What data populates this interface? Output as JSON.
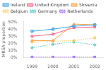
{
  "chart_data": {
    "type": "line",
    "x": [
      1999,
      2000,
      2001,
      2002
    ],
    "series": [
      {
        "name": "Ireland",
        "values": [
          37,
          40,
          44,
          46
        ],
        "marker": "circle",
        "line_style": "solid"
      },
      {
        "name": "United Kingdom",
        "values": [
          30,
          33,
          42,
          43
        ],
        "marker": "square",
        "line_style": "solid"
      },
      {
        "name": "Slovenia",
        "values": [
          24,
          24,
          47,
          46
        ],
        "marker": "triangle",
        "line_style": "solid"
      },
      {
        "name": "Belgium",
        "values": [
          22,
          23,
          24,
          28
        ],
        "marker": "square",
        "line_style": "dotted"
      },
      {
        "name": "Germany",
        "values": [
          14,
          19,
          22,
          18
        ],
        "marker": "diamond",
        "line_style": "dotted"
      },
      {
        "name": "Netherlands",
        "values": [
          1,
          1,
          1,
          1
        ],
        "marker": "square",
        "line_style": "dotted"
      }
    ],
    "ylabel": "MRSA proportion",
    "xlim": [
      1998.6,
      2002.4
    ],
    "xticks": [
      1999,
      2000,
      2001,
      2002
    ],
    "ylim": [
      0,
      52
    ],
    "yticks": [
      {
        "value": 0,
        "label": "0%"
      },
      {
        "value": 10,
        "label": "10%"
      },
      {
        "value": 20,
        "label": "20%"
      },
      {
        "value": 30,
        "label": "30%"
      },
      {
        "value": 40,
        "label": "40%"
      },
      {
        "value": 50,
        "label": "50%"
      }
    ],
    "grid": false,
    "legend": "upper left"
  }
}
